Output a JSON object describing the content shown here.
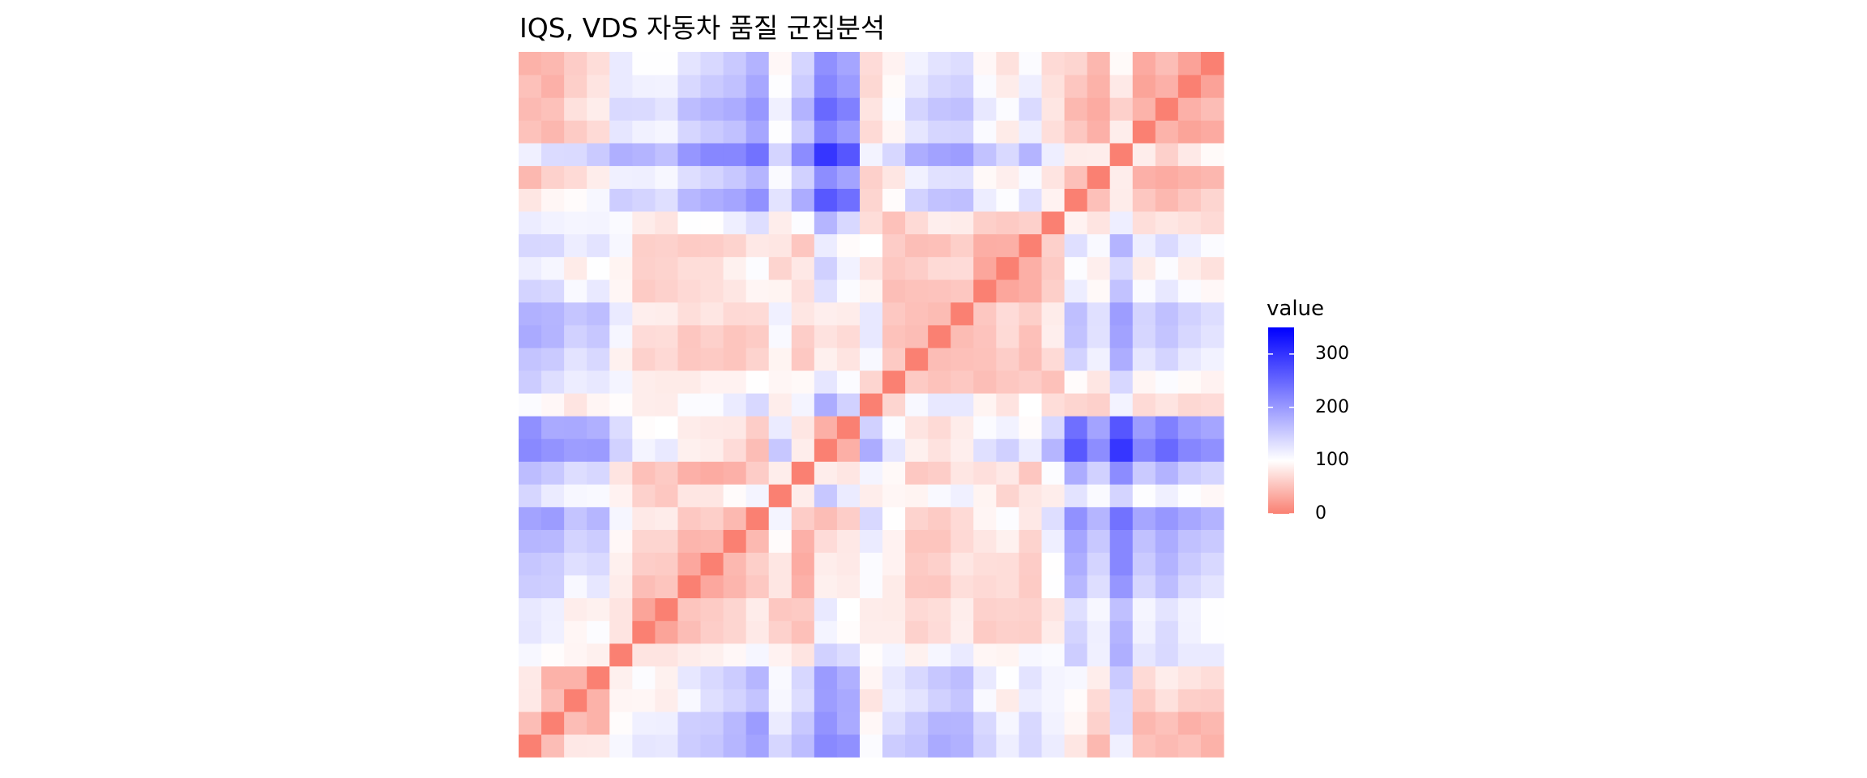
{
  "chart_data": {
    "type": "heatmap",
    "title": "IQS, VDS 자동차 품질 군집분석",
    "legend": {
      "title": "value",
      "placement": "right",
      "ticks": [
        0,
        100,
        200,
        300
      ],
      "range": [
        0,
        350
      ],
      "midpoint": 100,
      "colors": {
        "low": "#fa8072",
        "mid": "#ffffff",
        "high": "#0000ff"
      }
    },
    "grid": false,
    "n": 31,
    "values": [
      [
        0,
        48,
        82,
        83,
        108,
        125,
        123,
        150,
        156,
        172,
        190,
        140,
        165,
        216,
        209,
        104,
        150,
        158,
        183,
        176,
        143,
        117,
        139,
        119,
        80,
        44,
        115,
        52,
        46,
        51,
        39
      ],
      [
        48,
        0,
        48,
        39,
        98,
        115,
        116,
        148,
        150,
        170,
        197,
        120,
        154,
        206,
        183,
        94,
        132,
        152,
        174,
        173,
        138,
        109,
        138,
        113,
        93,
        64,
        135,
        43,
        51,
        38,
        44
      ],
      [
        82,
        48,
        0,
        39,
        92,
        93,
        86,
        107,
        131,
        143,
        158,
        108,
        133,
        196,
        184,
        79,
        118,
        127,
        145,
        157,
        106,
        84,
        118,
        110,
        97,
        71,
        136,
        59,
        76,
        62,
        60
      ],
      [
        83,
        39,
        39,
        0,
        88,
        103,
        89,
        124,
        137,
        150,
        172,
        106,
        139,
        198,
        177,
        92,
        123,
        138,
        155,
        165,
        122,
        101,
        127,
        111,
        108,
        86,
        152,
        71,
        86,
        79,
        73
      ],
      [
        108,
        98,
        92,
        88,
        0,
        79,
        79,
        85,
        88,
        94,
        109,
        90,
        79,
        145,
        134,
        98,
        111,
        89,
        109,
        121,
        93,
        91,
        108,
        105,
        149,
        115,
        178,
        125,
        137,
        121,
        121
      ],
      [
        125,
        115,
        93,
        103,
        79,
        0,
        28,
        48,
        61,
        67,
        83,
        64,
        50,
        111,
        98,
        86,
        86,
        64,
        72,
        87,
        59,
        63,
        62,
        85,
        142,
        116,
        174,
        114,
        136,
        114,
        101
      ],
      [
        123,
        116,
        86,
        89,
        79,
        28,
        0,
        54,
        59,
        67,
        85,
        56,
        58,
        122,
        100,
        85,
        84,
        70,
        73,
        86,
        64,
        65,
        64,
        79,
        131,
        108,
        162,
        110,
        126,
        113,
        101
      ],
      [
        150,
        148,
        107,
        124,
        85,
        48,
        54,
        0,
        31,
        42,
        57,
        80,
        38,
        88,
        85,
        104,
        84,
        56,
        55,
        74,
        70,
        73,
        59,
        101,
        171,
        132,
        203,
        140,
        165,
        138,
        126
      ],
      [
        156,
        150,
        131,
        137,
        88,
        61,
        59,
        31,
        0,
        44,
        62,
        80,
        34,
        86,
        83,
        104,
        90,
        58,
        63,
        80,
        74,
        73,
        60,
        99,
        180,
        142,
        218,
        152,
        175,
        152,
        138
      ],
      [
        172,
        170,
        143,
        150,
        94,
        67,
        67,
        42,
        44,
        0,
        45,
        97,
        38,
        72,
        82,
        120,
        90,
        54,
        54,
        70,
        80,
        89,
        65,
        116,
        188,
        154,
        218,
        161,
        181,
        161,
        153
      ],
      [
        190,
        197,
        158,
        172,
        109,
        83,
        85,
        57,
        62,
        45,
        0,
        111,
        60,
        48,
        61,
        138,
        99,
        65,
        59,
        71,
        92,
        103,
        82,
        132,
        208,
        173,
        238,
        187,
        202,
        186,
        175
      ],
      [
        140,
        120,
        108,
        106,
        90,
        64,
        56,
        80,
        80,
        97,
        111,
        0,
        86,
        155,
        120,
        86,
        93,
        91,
        106,
        115,
        91,
        66,
        80,
        86,
        127,
        105,
        142,
        102,
        115,
        102,
        94
      ],
      [
        165,
        154,
        133,
        139,
        79,
        50,
        58,
        38,
        34,
        38,
        60,
        86,
        0,
        86,
        80,
        111,
        95,
        57,
        61,
        80,
        75,
        82,
        55,
        103,
        181,
        145,
        213,
        152,
        175,
        150,
        141
      ],
      [
        216,
        206,
        196,
        198,
        145,
        111,
        122,
        88,
        86,
        72,
        48,
        155,
        86,
        0,
        37,
        181,
        125,
        88,
        77,
        87,
        130,
        146,
        119,
        173,
        264,
        212,
        297,
        220,
        247,
        219,
        209
      ],
      [
        209,
        183,
        184,
        177,
        134,
        98,
        100,
        85,
        83,
        82,
        61,
        120,
        80,
        37,
        0,
        145,
        104,
        79,
        71,
        85,
        104,
        113,
        97,
        138,
        241,
        190,
        266,
        197,
        225,
        198,
        188
      ],
      [
        104,
        94,
        79,
        92,
        98,
        86,
        85,
        104,
        104,
        120,
        138,
        86,
        111,
        181,
        145,
        0,
        67,
        107,
        123,
        123,
        91,
        78,
        100,
        73,
        67,
        63,
        112,
        71,
        79,
        69,
        72
      ],
      [
        150,
        132,
        118,
        123,
        111,
        86,
        84,
        84,
        90,
        90,
        99,
        93,
        95,
        125,
        104,
        67,
        0,
        58,
        52,
        57,
        49,
        56,
        60,
        51,
        97,
        80,
        139,
        92,
        104,
        96,
        90
      ],
      [
        158,
        152,
        127,
        138,
        89,
        64,
        70,
        56,
        58,
        54,
        65,
        91,
        57,
        88,
        79,
        107,
        58,
        0,
        48,
        50,
        52,
        61,
        49,
        71,
        144,
        114,
        180,
        125,
        142,
        123,
        113
      ],
      [
        183,
        174,
        145,
        155,
        109,
        72,
        73,
        55,
        63,
        54,
        59,
        106,
        61,
        77,
        71,
        123,
        52,
        48,
        0,
        47,
        53,
        71,
        50,
        87,
        160,
        129,
        191,
        140,
        158,
        139,
        127
      ],
      [
        176,
        173,
        157,
        165,
        121,
        87,
        86,
        74,
        80,
        70,
        71,
        115,
        80,
        87,
        85,
        123,
        57,
        50,
        47,
        0,
        56,
        72,
        62,
        85,
        163,
        130,
        196,
        142,
        162,
        145,
        133
      ],
      [
        143,
        138,
        106,
        122,
        93,
        59,
        64,
        70,
        74,
        80,
        92,
        91,
        75,
        130,
        104,
        91,
        49,
        52,
        53,
        56,
        0,
        30,
        36,
        62,
        118,
        95,
        160,
        105,
        123,
        105,
        94
      ],
      [
        117,
        109,
        84,
        101,
        91,
        63,
        65,
        73,
        73,
        89,
        103,
        66,
        82,
        146,
        113,
        78,
        56,
        61,
        71,
        72,
        30,
        0,
        37,
        58,
        103,
        87,
        137,
        84,
        104,
        85,
        76
      ],
      [
        139,
        138,
        118,
        127,
        108,
        62,
        64,
        59,
        60,
        65,
        82,
        80,
        55,
        119,
        97,
        100,
        60,
        49,
        50,
        62,
        36,
        37,
        0,
        63,
        131,
        106,
        174,
        117,
        136,
        117,
        104
      ],
      [
        119,
        113,
        110,
        111,
        105,
        85,
        79,
        101,
        99,
        116,
        132,
        86,
        103,
        173,
        138,
        73,
        51,
        71,
        87,
        85,
        62,
        58,
        63,
        0,
        90,
        79,
        117,
        74,
        80,
        76,
        71
      ],
      [
        80,
        93,
        97,
        108,
        149,
        142,
        131,
        171,
        180,
        188,
        208,
        127,
        181,
        264,
        241,
        67,
        97,
        144,
        160,
        163,
        118,
        103,
        131,
        90,
        0,
        50,
        85,
        56,
        44,
        55,
        67
      ],
      [
        44,
        64,
        71,
        86,
        115,
        116,
        108,
        132,
        142,
        154,
        173,
        105,
        145,
        212,
        190,
        63,
        80,
        114,
        129,
        130,
        95,
        87,
        106,
        79,
        50,
        0,
        86,
        38,
        34,
        39,
        43
      ],
      [
        115,
        135,
        136,
        152,
        178,
        174,
        162,
        203,
        218,
        218,
        238,
        142,
        213,
        297,
        266,
        112,
        139,
        180,
        191,
        196,
        160,
        137,
        174,
        117,
        85,
        86,
        0,
        86,
        63,
        83,
        96
      ],
      [
        52,
        43,
        59,
        71,
        125,
        114,
        110,
        140,
        152,
        161,
        187,
        102,
        152,
        220,
        197,
        71,
        92,
        125,
        140,
        142,
        105,
        84,
        117,
        74,
        56,
        38,
        86,
        0,
        40,
        28,
        33
      ],
      [
        46,
        51,
        76,
        86,
        137,
        136,
        126,
        165,
        175,
        181,
        202,
        115,
        175,
        247,
        225,
        79,
        104,
        142,
        158,
        162,
        123,
        104,
        136,
        80,
        44,
        34,
        63,
        40,
        0,
        38,
        48
      ],
      [
        51,
        38,
        62,
        79,
        121,
        114,
        113,
        138,
        152,
        161,
        186,
        102,
        150,
        219,
        198,
        69,
        96,
        123,
        139,
        145,
        105,
        85,
        117,
        76,
        55,
        39,
        83,
        28,
        38,
        0,
        27
      ],
      [
        39,
        44,
        60,
        73,
        121,
        101,
        101,
        126,
        138,
        153,
        175,
        94,
        141,
        209,
        188,
        72,
        90,
        113,
        127,
        133,
        94,
        76,
        104,
        71,
        67,
        43,
        96,
        33,
        48,
        27,
        0
      ]
    ]
  }
}
